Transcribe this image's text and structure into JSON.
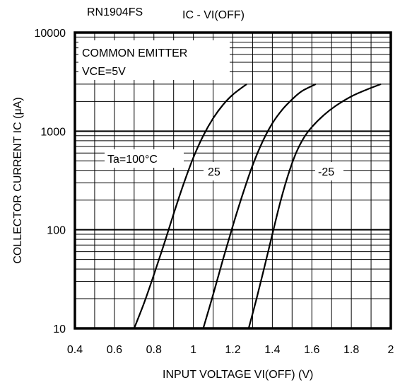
{
  "chart_data": {
    "type": "line",
    "part_number": "RN1904FS",
    "title": "IC - VI(OFF)",
    "xlabel": "INPUT VOLTAGE  VI(OFF)  (V)",
    "ylabel": "COLLECTOR CURRENT  IC  (μA)",
    "x_scale": "linear",
    "y_scale": "log",
    "xlim": [
      0.4,
      2.0
    ],
    "ylim": [
      10,
      10000
    ],
    "x_ticks": [
      "0.4",
      "0.6",
      "0.8",
      "1",
      "1.2",
      "1.4",
      "1.6",
      "1.8",
      "2"
    ],
    "y_ticks": [
      "10",
      "100",
      "1000",
      "10000"
    ],
    "grid": true,
    "annotations": {
      "condition_1": "COMMON EMITTER",
      "condition_2": "VCE=5V"
    },
    "series": [
      {
        "name": "Ta=100°C",
        "x": [
          0.7,
          0.75,
          0.8,
          0.85,
          0.9,
          0.95,
          1.0,
          1.05,
          1.1,
          1.15,
          1.2,
          1.27
        ],
        "y": [
          10,
          18,
          35,
          70,
          145,
          290,
          540,
          900,
          1350,
          1850,
          2350,
          3000
        ]
      },
      {
        "name": "25",
        "x": [
          1.05,
          1.1,
          1.15,
          1.2,
          1.25,
          1.3,
          1.35,
          1.4,
          1.45,
          1.5,
          1.55,
          1.62
        ],
        "y": [
          10,
          22,
          50,
          110,
          230,
          450,
          780,
          1200,
          1650,
          2100,
          2550,
          3000
        ]
      },
      {
        "name": "-25",
        "x": [
          1.28,
          1.32,
          1.36,
          1.4,
          1.44,
          1.48,
          1.52,
          1.56,
          1.6,
          1.66,
          1.72,
          1.8,
          1.88,
          1.95
        ],
        "y": [
          10,
          20,
          42,
          90,
          190,
          360,
          600,
          860,
          1100,
          1450,
          1800,
          2250,
          2650,
          3000
        ]
      }
    ]
  }
}
